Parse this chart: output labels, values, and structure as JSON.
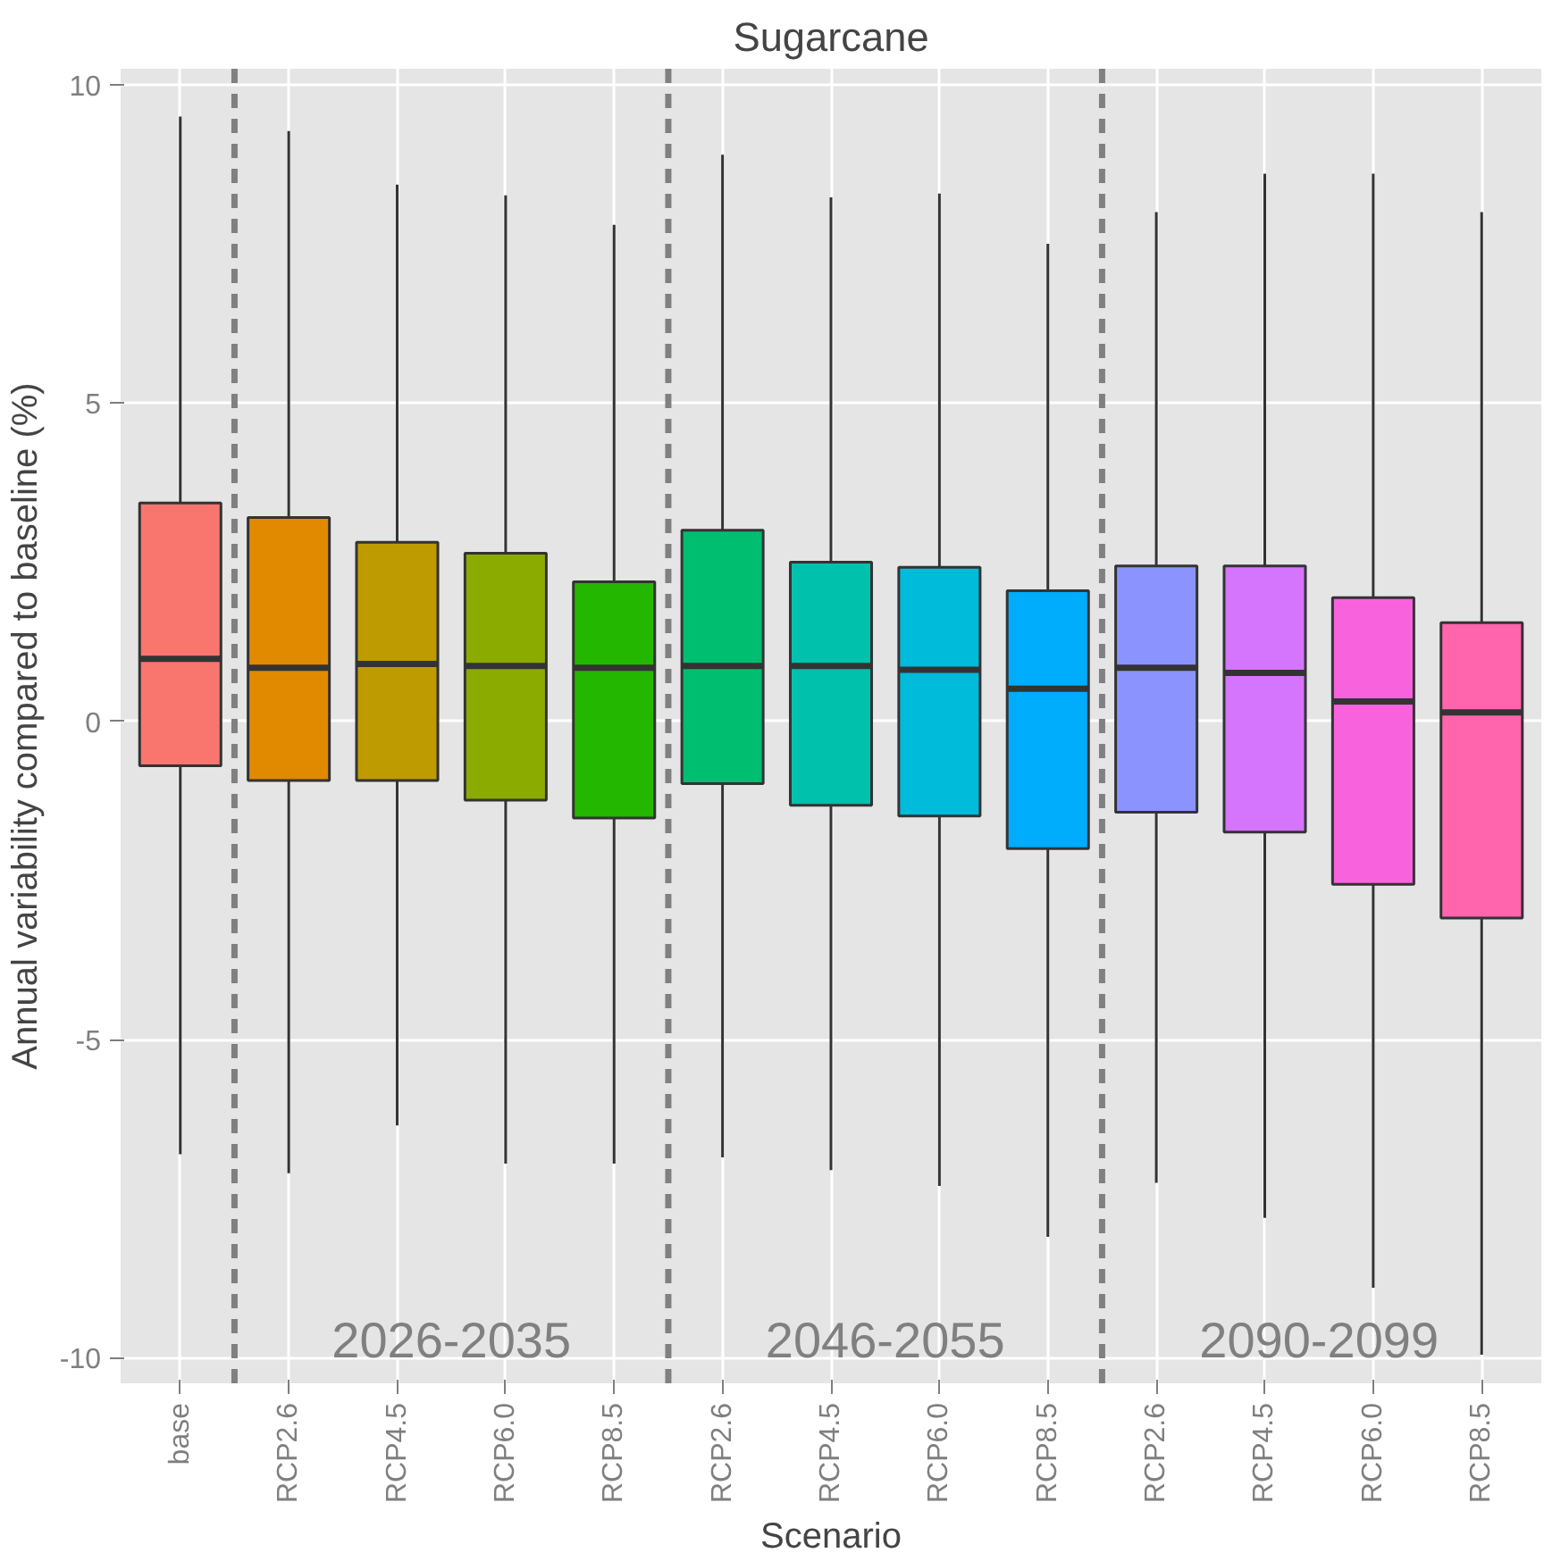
{
  "chart_data": {
    "type": "box",
    "title": "Sugarcane",
    "xlabel": "Scenario",
    "ylabel": "Annual variability compared to baseline (%)",
    "categories": [
      "base",
      "RCP2.6",
      "RCP4.5",
      "RCP6.0",
      "RCP8.5",
      "RCP2.6",
      "RCP4.5",
      "RCP6.0",
      "RCP8.5",
      "RCP2.6",
      "RCP4.5",
      "RCP6.0",
      "RCP8.5"
    ],
    "colors": [
      "#f8766d",
      "#e18a00",
      "#be9c00",
      "#8cab00",
      "#24b700",
      "#00be70",
      "#00c1ab",
      "#00bbda",
      "#00acfc",
      "#8b93ff",
      "#d575fe",
      "#f962dd",
      "#ff65ac"
    ],
    "boxes": [
      {
        "low": -6.8,
        "q1": -0.7,
        "median": 0.98,
        "q3": 3.43,
        "high": 9.5
      },
      {
        "low": -7.1,
        "q1": -0.93,
        "median": 0.84,
        "q3": 3.2,
        "high": 9.27
      },
      {
        "low": -6.35,
        "q1": -0.93,
        "median": 0.9,
        "q3": 2.81,
        "high": 8.43
      },
      {
        "low": -6.95,
        "q1": -1.24,
        "median": 0.87,
        "q3": 2.64,
        "high": 8.26
      },
      {
        "low": -6.95,
        "q1": -1.52,
        "median": 0.84,
        "q3": 2.19,
        "high": 7.8
      },
      {
        "low": -6.85,
        "q1": -0.98,
        "median": 0.87,
        "q3": 3.0,
        "high": 8.9
      },
      {
        "low": -7.05,
        "q1": -1.32,
        "median": 0.87,
        "q3": 2.5,
        "high": 8.23
      },
      {
        "low": -7.3,
        "q1": -1.49,
        "median": 0.81,
        "q3": 2.42,
        "high": 8.29
      },
      {
        "low": -8.1,
        "q1": -2.0,
        "median": 0.51,
        "q3": 2.05,
        "high": 7.5
      },
      {
        "low": -7.25,
        "q1": -1.43,
        "median": 0.84,
        "q3": 2.44,
        "high": 8.0
      },
      {
        "low": -7.8,
        "q1": -1.74,
        "median": 0.76,
        "q3": 2.44,
        "high": 8.6
      },
      {
        "low": -8.9,
        "q1": -2.56,
        "median": 0.31,
        "q3": 1.94,
        "high": 8.6
      },
      {
        "low": -9.95,
        "q1": -3.09,
        "median": 0.14,
        "q3": 1.55,
        "high": 8.0
      }
    ],
    "ylim": [
      -10.4,
      10.25
    ],
    "yticks": [
      -10,
      -5,
      0,
      5,
      10
    ],
    "grid": true,
    "annotations": [
      "2026-2035",
      "2046-2055",
      "2090-2099"
    ]
  }
}
